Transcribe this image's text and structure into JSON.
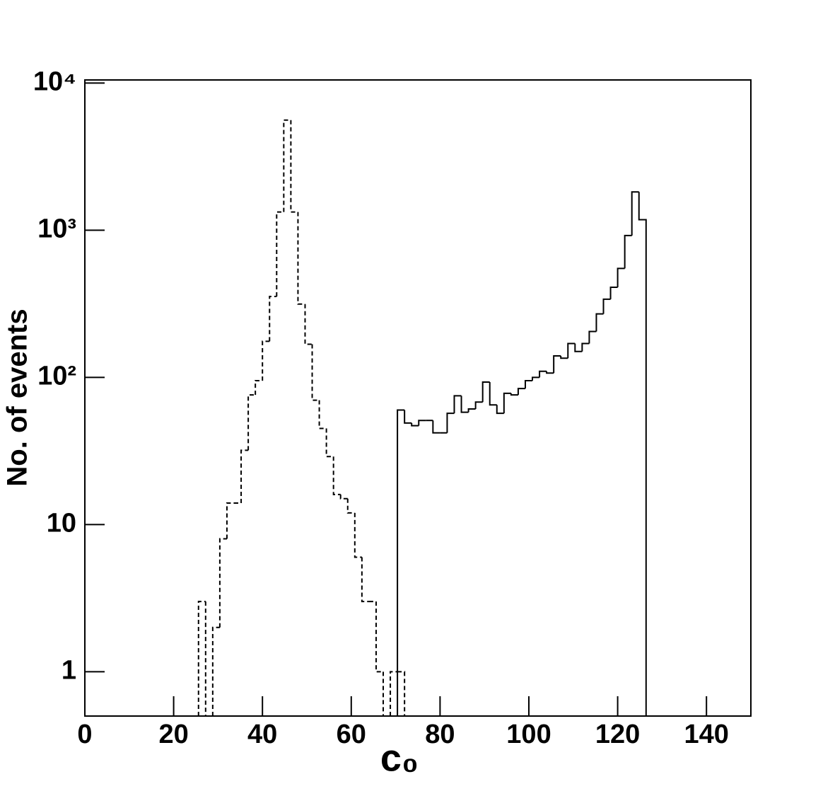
{
  "chart_data": {
    "type": "histogram",
    "xlabel": "c₀",
    "ylabel": "No. of events",
    "log_y": true,
    "xlim": [
      0,
      150
    ],
    "ylim": [
      0.5,
      10500
    ],
    "xticks": [
      0,
      20,
      40,
      60,
      80,
      100,
      120,
      140
    ],
    "yticks": [
      1,
      10,
      {
        "value": 100,
        "label": "10²"
      },
      {
        "value": 1000,
        "label": "10³"
      },
      {
        "value": 10000,
        "label": "10⁴"
      }
    ],
    "series": [
      {
        "color": "#000000",
        "line_style": "dashed",
        "bins": [
          25.6,
          27.2,
          28.8,
          30.4,
          32,
          33.6,
          35.2,
          36.8,
          38.4,
          40,
          41.6,
          43.2,
          44.8,
          46.4,
          48,
          49.6,
          51.2,
          52.8,
          54.4,
          56,
          57.6,
          59.2,
          60.8,
          62.4,
          64,
          65.6,
          67.2,
          68.8,
          70.4,
          72
        ],
        "values": [
          3,
          0,
          2,
          8,
          14,
          14,
          32,
          76,
          95,
          176,
          355,
          1330,
          5600,
          1330,
          315,
          168,
          70,
          45,
          29,
          16,
          15,
          12,
          6,
          3,
          3,
          1,
          0,
          1,
          1
        ]
      },
      {
        "color": "#000000",
        "line_style": "solid",
        "bins": [
          70.4,
          72,
          73.6,
          75.2,
          76.8,
          78.4,
          80,
          81.6,
          83.2,
          84.8,
          86.4,
          88,
          89.6,
          91.2,
          92.8,
          94.4,
          96,
          97.6,
          99.2,
          100.8,
          102.4,
          104,
          105.6,
          107.2,
          108.8,
          110.4,
          112,
          113.6,
          115.2,
          116.8,
          118.4,
          120,
          121.6,
          123.2,
          124.8,
          126.4
        ],
        "values": [
          60,
          49,
          47,
          51,
          51,
          42,
          42,
          57,
          75,
          58,
          61,
          68,
          93,
          65,
          57,
          78,
          76,
          84,
          95,
          100,
          110,
          107,
          140,
          135,
          170,
          150,
          170,
          205,
          270,
          340,
          410,
          550,
          920,
          1820,
          1180
        ]
      }
    ]
  }
}
